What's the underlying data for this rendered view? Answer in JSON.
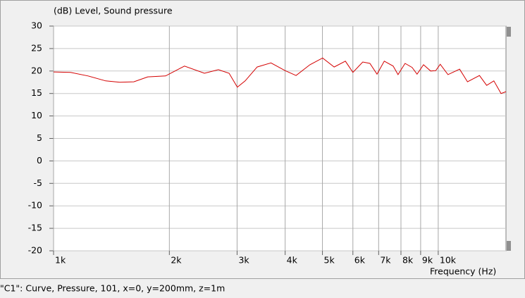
{
  "chart_data": {
    "type": "line",
    "title": "(dB)  Level, Sound pressure",
    "x_label": "Frequency  (Hz)",
    "x_scale": "log",
    "xlim": [
      1000,
      15000
    ],
    "xticks": [
      {
        "value": 1000,
        "label": "1k"
      },
      {
        "value": 2000,
        "label": "2k"
      },
      {
        "value": 3000,
        "label": "3k"
      },
      {
        "value": 4000,
        "label": "4k"
      },
      {
        "value": 5000,
        "label": "5k"
      },
      {
        "value": 6000,
        "label": "6k"
      },
      {
        "value": 7000,
        "label": "7k"
      },
      {
        "value": 8000,
        "label": "8k"
      },
      {
        "value": 9000,
        "label": "9k"
      },
      {
        "value": 10000,
        "label": "10k"
      }
    ],
    "ylim": [
      -20,
      30
    ],
    "yticks": [
      -20,
      -15,
      -10,
      -5,
      0,
      5,
      10,
      15,
      20,
      25,
      30
    ],
    "grid": true,
    "x": [
      1000,
      1107,
      1229,
      1366,
      1486,
      1617,
      1758,
      1955,
      2190,
      2467,
      2682,
      2860,
      3005,
      3149,
      3382,
      3674,
      3997,
      4270,
      4640,
      5005,
      5363,
      5736,
      6000,
      6365,
      6644,
      6933,
      7239,
      7635,
      7860,
      8198,
      8554,
      8810,
      9158,
      9556,
      9854,
      10118,
      10601,
      11363,
      11915,
      12800,
      13360,
      13950,
      14564,
      15000
    ],
    "series": [
      {
        "color": "#d40000",
        "values": [
          19.8,
          19.7,
          18.9,
          17.8,
          17.5,
          17.6,
          18.7,
          18.9,
          21.1,
          19.5,
          20.3,
          19.5,
          16.4,
          17.8,
          20.9,
          21.8,
          20.1,
          19.0,
          21.4,
          22.9,
          20.9,
          22.2,
          19.7,
          22.0,
          21.7,
          19.3,
          22.2,
          21.1,
          19.2,
          21.7,
          20.8,
          19.3,
          21.4,
          20.0,
          20.1,
          21.5,
          19.2,
          20.4,
          17.6,
          19.0,
          16.8,
          17.8,
          15.0,
          15.4
        ]
      }
    ]
  },
  "status_text": "\"C1\": Curve, Pressure, 101, x=0, y=200mm, z=1m"
}
